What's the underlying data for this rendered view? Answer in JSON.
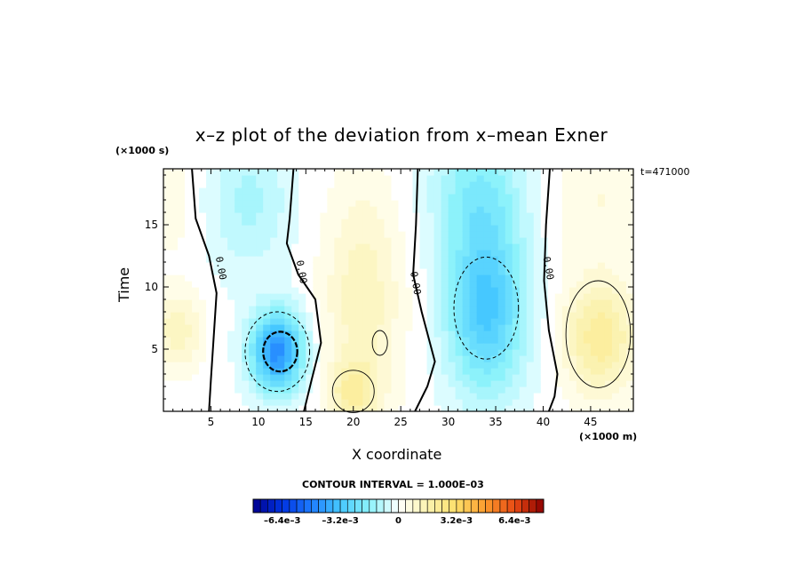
{
  "chart_data": {
    "type": "heatmap",
    "title": "x–z plot of the deviation from x–mean Exner",
    "xlabel": "X coordinate",
    "ylabel": "Time",
    "x_unit_label": "(×1000 m)",
    "y_unit_label": "(×1000 s)",
    "time_stamp": "t=471000",
    "xlim": [
      0,
      49.5
    ],
    "ylim": [
      0,
      19.5
    ],
    "x_ticks": [
      5,
      10,
      15,
      20,
      25,
      30,
      35,
      40,
      45
    ],
    "y_ticks": [
      5,
      10,
      15
    ],
    "contour_interval_text": "CONTOUR INTERVAL = 1.000E–03",
    "contour_interval": 0.001,
    "contour_labels": [
      "0.00",
      "0.00",
      "0.00",
      "0.00"
    ],
    "contour_label_positions": [
      [
        6,
        11.5
      ],
      [
        14.5,
        11.2
      ],
      [
        26.5,
        10.3
      ],
      [
        40.5,
        11.5
      ]
    ],
    "zero_contours": [
      [
        [
          3,
          19.5
        ],
        [
          3.4,
          15.5
        ],
        [
          4.8,
          12.5
        ],
        [
          5.6,
          9.5
        ],
        [
          5.3,
          6.0
        ],
        [
          5.0,
          2.5
        ],
        [
          4.8,
          0
        ]
      ],
      [
        [
          13.7,
          19.5
        ],
        [
          13.3,
          15.5
        ],
        [
          13.0,
          13.5
        ],
        [
          14.2,
          11.0
        ],
        [
          16.0,
          9.0
        ],
        [
          16.6,
          5.5
        ],
        [
          15.6,
          2.5
        ],
        [
          14.8,
          0
        ]
      ],
      [
        [
          26.8,
          19.5
        ],
        [
          26.6,
          15.0
        ],
        [
          26.3,
          11.0
        ],
        [
          27.2,
          8.0
        ],
        [
          28.6,
          4.0
        ],
        [
          27.8,
          2.0
        ],
        [
          26.5,
          0
        ]
      ],
      [
        [
          40.7,
          19.5
        ],
        [
          40.3,
          15.0
        ],
        [
          40.1,
          10.5
        ],
        [
          40.6,
          6.5
        ],
        [
          41.5,
          3.0
        ],
        [
          41.2,
          1.2
        ],
        [
          40.6,
          0
        ]
      ]
    ],
    "field_features": [
      {
        "x": 12,
        "y": 4.8,
        "sx": 2.8,
        "sy": 3.2,
        "amplitude": -0.0044
      },
      {
        "x": 34,
        "y": 8.5,
        "sx": 4.2,
        "sy": 7.0,
        "amplitude": -0.0032
      },
      {
        "x": 9,
        "y": 17,
        "sx": 4.5,
        "sy": 6.0,
        "amplitude": -0.0011
      },
      {
        "x": 33,
        "y": 18,
        "sx": 5.0,
        "sy": 5.0,
        "amplitude": -0.0015
      },
      {
        "x": 21,
        "y": 9,
        "sx": 4.0,
        "sy": 9.0,
        "amplitude": 0.0013
      },
      {
        "x": 20,
        "y": 1.5,
        "sx": 2.5,
        "sy": 2.5,
        "amplitude": 0.0015
      },
      {
        "x": 46,
        "y": 6,
        "sx": 3.8,
        "sy": 4.5,
        "amplitude": 0.0021
      },
      {
        "x": 1.5,
        "y": 6.5,
        "sx": 2.5,
        "sy": 3.0,
        "amplitude": 0.0013
      },
      {
        "x": 46,
        "y": 17,
        "sx": 5.0,
        "sy": 5.0,
        "amplitude": 0.0006
      },
      {
        "x": 1,
        "y": 17,
        "sx": 3.0,
        "sy": 5.0,
        "amplitude": 0.0004
      }
    ],
    "colorbar": {
      "min": -0.008,
      "max": 0.008,
      "step": 0.0004,
      "tick_labels": [
        {
          "value": -0.0064,
          "label": "–6.4e–3"
        },
        {
          "value": -0.0032,
          "label": "–3.2e–3"
        },
        {
          "value": 0,
          "label": "0"
        },
        {
          "value": 0.0032,
          "label": "3.2e–3"
        },
        {
          "value": 0.0064,
          "label": "6.4e–3"
        }
      ],
      "stops": [
        {
          "value": -0.008,
          "color": "#00008f"
        },
        {
          "value": -0.0064,
          "color": "#0033e0"
        },
        {
          "value": -0.0048,
          "color": "#1e7cff"
        },
        {
          "value": -0.0032,
          "color": "#46c8ff"
        },
        {
          "value": -0.0016,
          "color": "#8cf2fb"
        },
        {
          "value": -0.0004,
          "color": "#dcfcff"
        },
        {
          "value": 0,
          "color": "#ffffff"
        },
        {
          "value": 0.0004,
          "color": "#fffde8"
        },
        {
          "value": 0.0016,
          "color": "#fbf2b0"
        },
        {
          "value": 0.0032,
          "color": "#fde06a"
        },
        {
          "value": 0.0048,
          "color": "#fb9a2c"
        },
        {
          "value": 0.0064,
          "color": "#e84a14"
        },
        {
          "value": 0.008,
          "color": "#8c0000"
        }
      ]
    }
  }
}
